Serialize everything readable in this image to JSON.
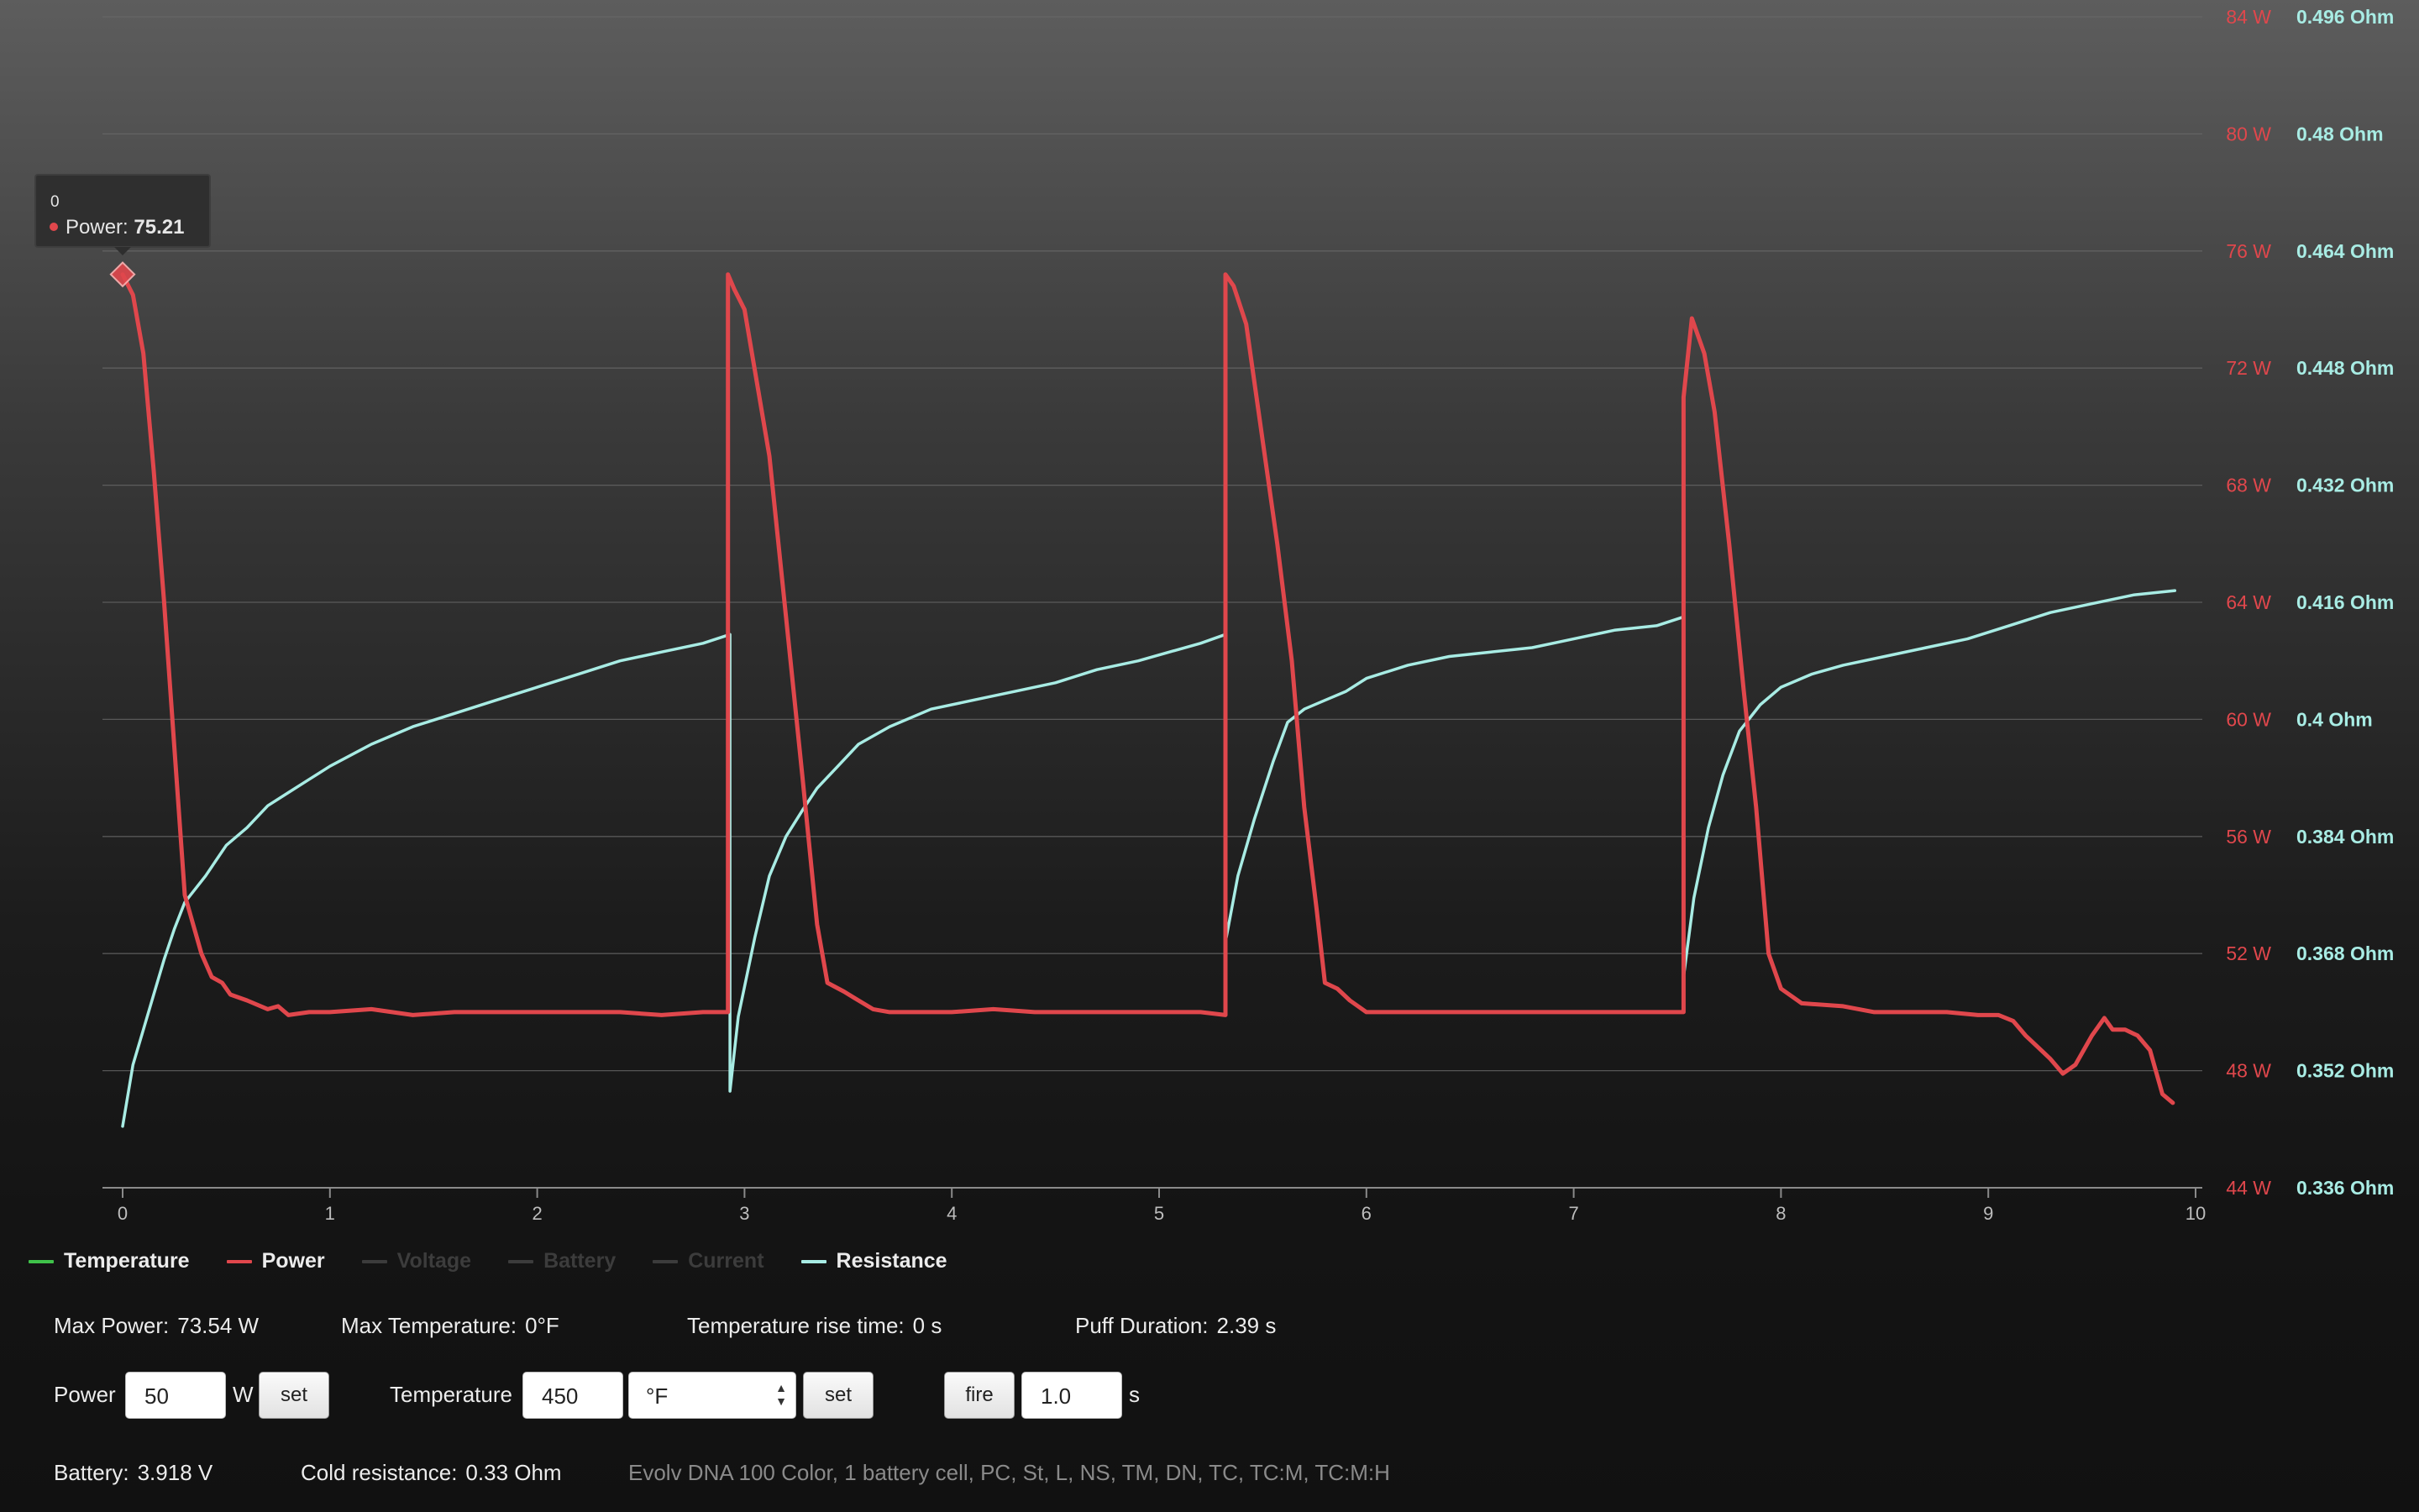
{
  "chart_data": {
    "type": "line",
    "x_range": [
      0,
      10
    ],
    "x_ticks": [
      "0",
      "1",
      "2",
      "3",
      "4",
      "5",
      "6",
      "7",
      "8",
      "9",
      "10"
    ],
    "y_axes": [
      {
        "name": "power",
        "unit": "W",
        "range": [
          44,
          84
        ],
        "ticks": [
          "84 W",
          "80 W",
          "76 W",
          "72 W",
          "68 W",
          "64 W",
          "60 W",
          "56 W",
          "52 W",
          "48 W",
          "44 W"
        ],
        "color": "#e0474c"
      },
      {
        "name": "resistance",
        "unit": "Ohm",
        "range": [
          0.336,
          0.496
        ],
        "ticks": [
          "0.496 Ohm",
          "0.48 Ohm",
          "0.464 Ohm",
          "0.448 Ohm",
          "0.432 Ohm",
          "0.416 Ohm",
          "0.4 Ohm",
          "0.384 Ohm",
          "0.368 Ohm",
          "0.352 Ohm",
          "0.336 Ohm"
        ],
        "color": "#a8ece4"
      }
    ],
    "grid": true,
    "series": [
      {
        "name": "Power",
        "axis": "power",
        "color": "#e0474c",
        "points": [
          [
            0,
            75.2
          ],
          [
            0.05,
            74.5
          ],
          [
            0.1,
            72.5
          ],
          [
            0.15,
            68.5
          ],
          [
            0.2,
            64
          ],
          [
            0.25,
            59
          ],
          [
            0.3,
            54
          ],
          [
            0.38,
            52
          ],
          [
            0.43,
            51.2
          ],
          [
            0.48,
            51
          ],
          [
            0.52,
            50.6
          ],
          [
            0.6,
            50.4
          ],
          [
            0.7,
            50.1
          ],
          [
            0.75,
            50.2
          ],
          [
            0.8,
            49.9
          ],
          [
            0.9,
            50
          ],
          [
            1,
            50
          ],
          [
            1.2,
            50.1
          ],
          [
            1.4,
            49.9
          ],
          [
            1.6,
            50
          ],
          [
            1.8,
            50
          ],
          [
            2,
            50
          ],
          [
            2.2,
            50
          ],
          [
            2.4,
            50
          ],
          [
            2.6,
            49.9
          ],
          [
            2.8,
            50
          ],
          [
            2.92,
            50
          ],
          [
            2.92,
            75.2
          ],
          [
            2.95,
            74.7
          ],
          [
            3.0,
            74
          ],
          [
            3.06,
            71.5
          ],
          [
            3.12,
            69
          ],
          [
            3.2,
            63.5
          ],
          [
            3.28,
            58
          ],
          [
            3.35,
            53
          ],
          [
            3.4,
            51
          ],
          [
            3.48,
            50.7
          ],
          [
            3.55,
            50.4
          ],
          [
            3.62,
            50.1
          ],
          [
            3.7,
            50
          ],
          [
            3.8,
            50
          ],
          [
            4,
            50
          ],
          [
            4.2,
            50.1
          ],
          [
            4.4,
            50
          ],
          [
            4.6,
            50
          ],
          [
            4.8,
            50
          ],
          [
            5,
            50
          ],
          [
            5.2,
            50
          ],
          [
            5.32,
            49.9
          ],
          [
            5.32,
            75.2
          ],
          [
            5.36,
            74.8
          ],
          [
            5.42,
            73.5
          ],
          [
            5.5,
            69.5
          ],
          [
            5.57,
            66
          ],
          [
            5.64,
            62
          ],
          [
            5.7,
            57
          ],
          [
            5.76,
            53.5
          ],
          [
            5.8,
            51
          ],
          [
            5.86,
            50.8
          ],
          [
            5.92,
            50.4
          ],
          [
            6,
            50
          ],
          [
            6.2,
            50
          ],
          [
            6.4,
            50
          ],
          [
            6.6,
            50
          ],
          [
            6.8,
            50
          ],
          [
            7,
            50
          ],
          [
            7.2,
            50
          ],
          [
            7.4,
            50
          ],
          [
            7.53,
            50
          ],
          [
            7.53,
            71
          ],
          [
            7.57,
            73.7
          ],
          [
            7.63,
            72.5
          ],
          [
            7.68,
            70.5
          ],
          [
            7.75,
            66
          ],
          [
            7.82,
            61
          ],
          [
            7.88,
            57
          ],
          [
            7.94,
            52
          ],
          [
            8,
            50.8
          ],
          [
            8.1,
            50.3
          ],
          [
            8.3,
            50.2
          ],
          [
            8.45,
            50
          ],
          [
            8.6,
            50
          ],
          [
            8.8,
            50
          ],
          [
            8.95,
            49.9
          ],
          [
            9.05,
            49.9
          ],
          [
            9.12,
            49.7
          ],
          [
            9.18,
            49.2
          ],
          [
            9.24,
            48.8
          ],
          [
            9.3,
            48.4
          ],
          [
            9.36,
            47.9
          ],
          [
            9.42,
            48.2
          ],
          [
            9.5,
            49.2
          ],
          [
            9.56,
            49.8
          ],
          [
            9.6,
            49.4
          ],
          [
            9.66,
            49.4
          ],
          [
            9.72,
            49.2
          ],
          [
            9.78,
            48.7
          ],
          [
            9.84,
            47.2
          ],
          [
            9.89,
            46.9
          ]
        ]
      },
      {
        "name": "Resistance",
        "axis": "resistance",
        "color": "#a8ece4",
        "points": [
          [
            0,
            0.3444
          ],
          [
            0.05,
            0.3528
          ],
          [
            0.1,
            0.3576
          ],
          [
            0.15,
            0.3624
          ],
          [
            0.2,
            0.3672
          ],
          [
            0.25,
            0.3714
          ],
          [
            0.3,
            0.375
          ],
          [
            0.4,
            0.3786
          ],
          [
            0.5,
            0.3828
          ],
          [
            0.6,
            0.3852
          ],
          [
            0.7,
            0.3882
          ],
          [
            0.8,
            0.39
          ],
          [
            0.9,
            0.3918
          ],
          [
            1,
            0.3936
          ],
          [
            1.2,
            0.3966
          ],
          [
            1.4,
            0.399
          ],
          [
            1.6,
            0.4008
          ],
          [
            1.8,
            0.4026
          ],
          [
            2,
            0.4044
          ],
          [
            2.2,
            0.4062
          ],
          [
            2.4,
            0.408
          ],
          [
            2.6,
            0.4092
          ],
          [
            2.8,
            0.4104
          ],
          [
            2.93,
            0.4116
          ],
          [
            2.93,
            0.3492
          ],
          [
            2.97,
            0.3594
          ],
          [
            3.05,
            0.3702
          ],
          [
            3.12,
            0.3786
          ],
          [
            3.2,
            0.384
          ],
          [
            3.28,
            0.3876
          ],
          [
            3.35,
            0.3906
          ],
          [
            3.45,
            0.3936
          ],
          [
            3.55,
            0.3966
          ],
          [
            3.7,
            0.399
          ],
          [
            3.9,
            0.4014
          ],
          [
            4.1,
            0.4026
          ],
          [
            4.3,
            0.4038
          ],
          [
            4.5,
            0.405
          ],
          [
            4.7,
            0.4068
          ],
          [
            4.9,
            0.408
          ],
          [
            5.05,
            0.4092
          ],
          [
            5.2,
            0.4104
          ],
          [
            5.32,
            0.4116
          ],
          [
            5.32,
            0.3696
          ],
          [
            5.38,
            0.3786
          ],
          [
            5.46,
            0.3864
          ],
          [
            5.55,
            0.3942
          ],
          [
            5.62,
            0.3996
          ],
          [
            5.7,
            0.4014
          ],
          [
            5.8,
            0.4026
          ],
          [
            5.9,
            0.4038
          ],
          [
            6.0,
            0.4056
          ],
          [
            6.2,
            0.4074
          ],
          [
            6.4,
            0.4086
          ],
          [
            6.6,
            0.4092
          ],
          [
            6.8,
            0.4098
          ],
          [
            7.0,
            0.411
          ],
          [
            7.2,
            0.4122
          ],
          [
            7.4,
            0.4128
          ],
          [
            7.53,
            0.414
          ],
          [
            7.53,
            0.3648
          ],
          [
            7.58,
            0.3756
          ],
          [
            7.65,
            0.3852
          ],
          [
            7.72,
            0.3924
          ],
          [
            7.8,
            0.3984
          ],
          [
            7.9,
            0.402
          ],
          [
            8.0,
            0.4044
          ],
          [
            8.15,
            0.4062
          ],
          [
            8.3,
            0.4074
          ],
          [
            8.5,
            0.4086
          ],
          [
            8.7,
            0.4098
          ],
          [
            8.9,
            0.411
          ],
          [
            9.1,
            0.4128
          ],
          [
            9.3,
            0.4146
          ],
          [
            9.5,
            0.4158
          ],
          [
            9.7,
            0.417
          ],
          [
            9.9,
            0.4176
          ]
        ]
      }
    ]
  },
  "tooltip": {
    "x": "0",
    "series": "Power",
    "value": "75.21"
  },
  "legend": [
    {
      "label": "Temperature",
      "color": "#3fc24a",
      "active": true
    },
    {
      "label": "Power",
      "color": "#e0474c",
      "active": true
    },
    {
      "label": "Voltage",
      "color": "#3c3c3c",
      "active": false
    },
    {
      "label": "Battery",
      "color": "#3c3c3c",
      "active": false
    },
    {
      "label": "Current",
      "color": "#3c3c3c",
      "active": false
    },
    {
      "label": "Resistance",
      "color": "#a8ece4",
      "active": true
    }
  ],
  "stats": {
    "max_power_label": "Max Power:",
    "max_power": "73.54 W",
    "max_temp_label": "Max Temperature:",
    "max_temp": "0°F",
    "rise_label": "Temperature rise time:",
    "rise": "0 s",
    "puff_label": "Puff Duration:",
    "puff": "2.39 s"
  },
  "controls": {
    "power_label": "Power",
    "power_value": "50",
    "power_unit": "W",
    "set_label": "set",
    "temp_label": "Temperature",
    "temp_value": "450",
    "temp_unit_selected": "°F",
    "fire_label": "fire",
    "fire_value": "1.0",
    "fire_unit": "s"
  },
  "info": {
    "battery_label": "Battery:",
    "battery": "3.918 V",
    "cold_label": "Cold resistance:",
    "cold": "0.33 Ohm",
    "device": "Evolv DNA 100 Color, 1 battery cell, PC, St, L, NS, TM, DN, TC, TC:M, TC:M:H"
  }
}
